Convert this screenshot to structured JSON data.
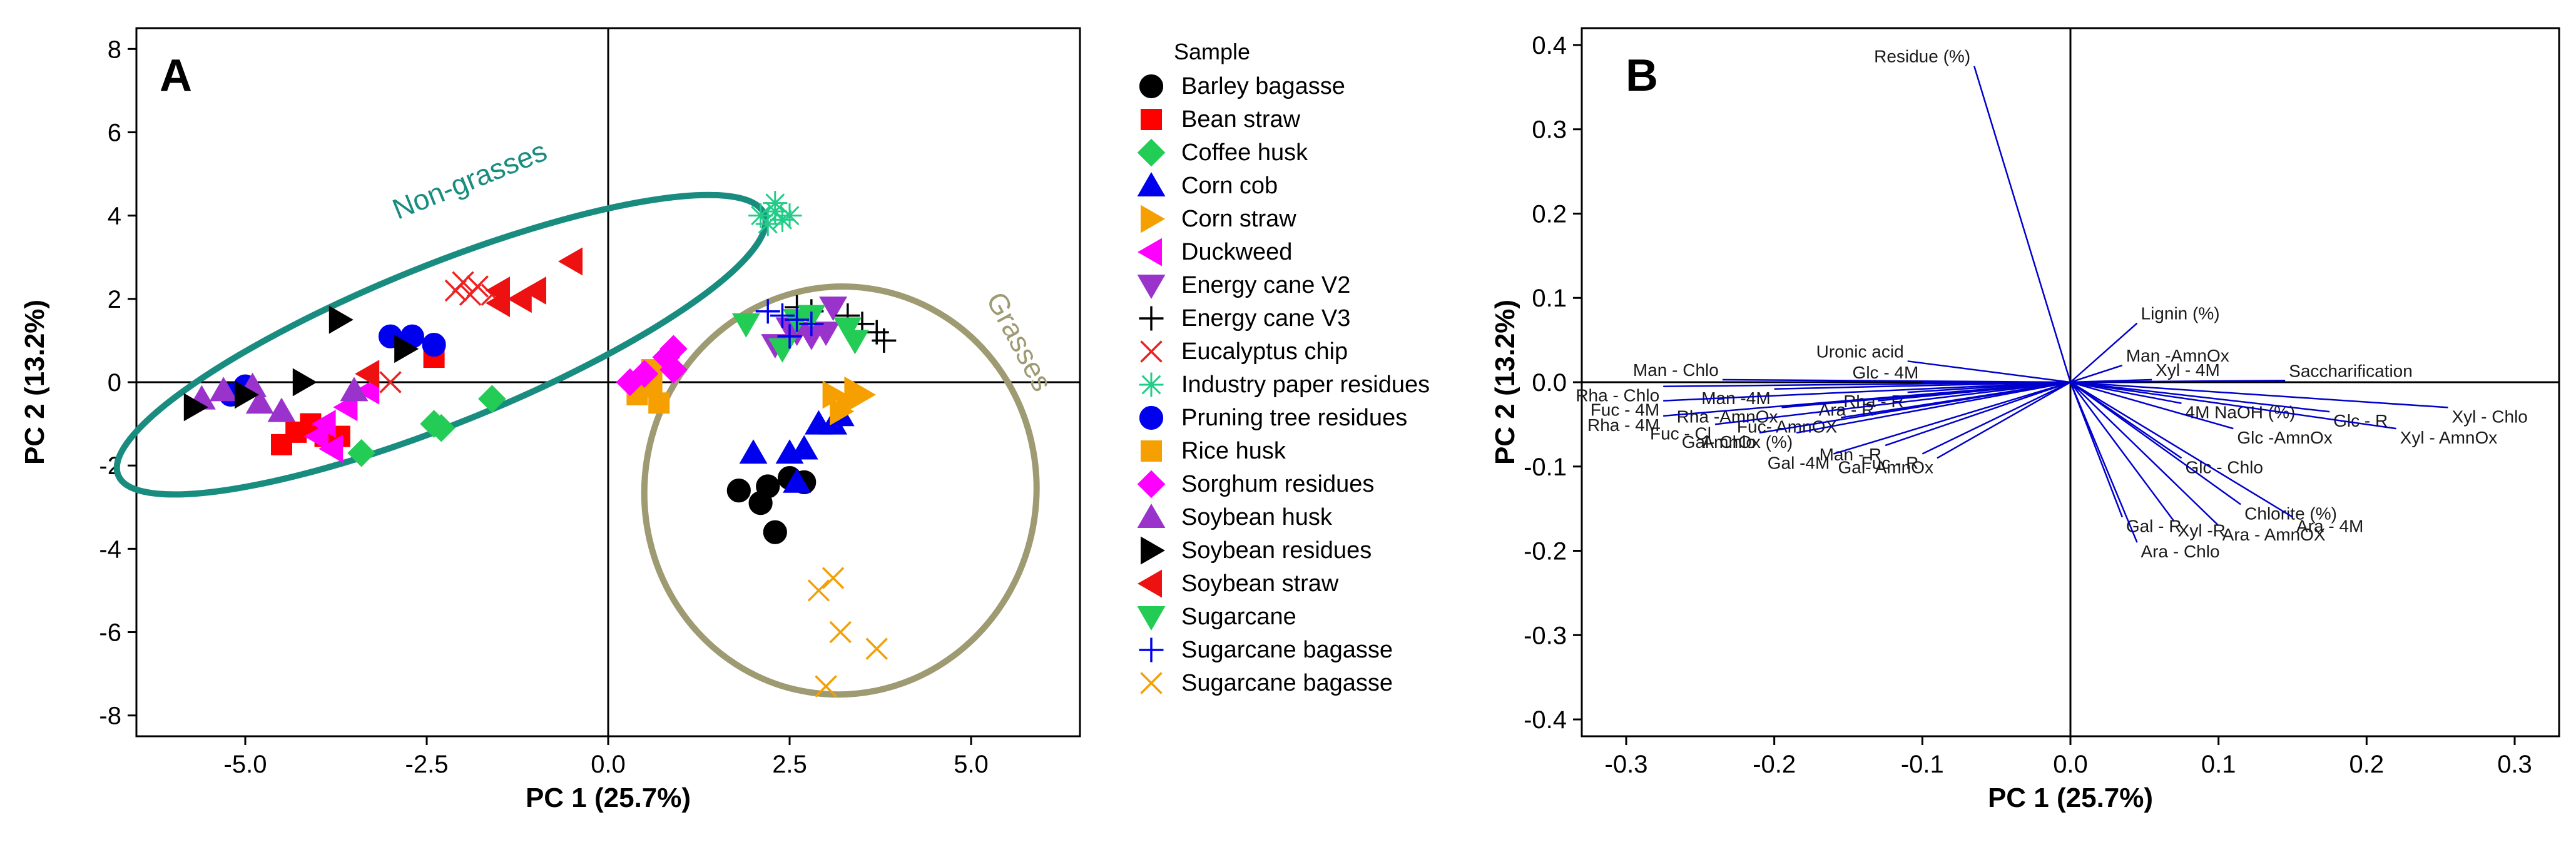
{
  "chart_data": [
    {
      "panel": "A",
      "type": "scatter",
      "xlabel": "PC 1 (25.7%)",
      "ylabel": "PC 2 (13.2%)",
      "xlim": [
        -6.5,
        6.5
      ],
      "ylim": [
        -8.5,
        8.5
      ],
      "xticks": [
        -5.0,
        -2.5,
        0.0,
        2.5,
        5.0
      ],
      "xtick_labels": [
        "-5.0",
        "-2.5",
        "0.0",
        "2.5",
        "5.0"
      ],
      "yticks": [
        8,
        6,
        4,
        2,
        0,
        -2,
        -4,
        -6,
        -8
      ],
      "ytick_labels": [
        "8",
        "6",
        "4",
        "2",
        "0",
        "-2",
        "-4",
        "-6",
        "-8"
      ],
      "legend_title": "Sample",
      "groups": [
        {
          "label": "Non-grasses",
          "color": "#198c80",
          "cx": -2.3,
          "cy": 0.9,
          "rx": 4.8,
          "ry": 1.9,
          "angle": 22
        },
        {
          "label": "Grasses",
          "color": "#9e9a72",
          "cx": 3.2,
          "cy": -2.6,
          "rx": 2.7,
          "ry": 4.9,
          "angle": -8
        }
      ],
      "series": [
        {
          "name": "Barley bagasse",
          "marker": "circle",
          "color": "#000000",
          "points": [
            [
              1.8,
              -2.6
            ],
            [
              2.1,
              -2.9
            ],
            [
              2.2,
              -2.5
            ],
            [
              2.3,
              -3.6
            ],
            [
              2.5,
              -2.3
            ],
            [
              2.7,
              -2.4
            ]
          ]
        },
        {
          "name": "Bean straw",
          "marker": "square",
          "color": "#ff0000",
          "points": [
            [
              -4.5,
              -1.5
            ],
            [
              -4.3,
              -1.2
            ],
            [
              -4.1,
              -1.0
            ],
            [
              -3.9,
              -1.3
            ],
            [
              -3.7,
              -1.3
            ],
            [
              -2.4,
              0.6
            ]
          ]
        },
        {
          "name": "Coffee husk",
          "marker": "diamond",
          "color": "#22cc55",
          "points": [
            [
              -3.4,
              -1.7
            ],
            [
              -2.4,
              -1.0
            ],
            [
              -2.3,
              -1.1
            ],
            [
              -1.6,
              -0.4
            ]
          ]
        },
        {
          "name": "Corn cob",
          "marker": "triangle-up",
          "color": "#0000ee",
          "points": [
            [
              2.0,
              -1.7
            ],
            [
              2.5,
              -1.7
            ],
            [
              2.6,
              -2.4
            ],
            [
              2.7,
              -1.6
            ],
            [
              2.9,
              -1.0
            ],
            [
              3.1,
              -1.0
            ],
            [
              3.2,
              -0.8
            ]
          ]
        },
        {
          "name": "Corn straw",
          "marker": "triangle-right",
          "color": "#f5a000",
          "points": [
            [
              3.1,
              -0.3
            ],
            [
              3.3,
              -0.5
            ],
            [
              3.5,
              -0.3
            ],
            [
              3.2,
              -0.7
            ],
            [
              3.4,
              -0.2
            ]
          ]
        },
        {
          "name": "Duckweed",
          "marker": "triangle-left",
          "color": "#ff00ff",
          "points": [
            [
              -4.0,
              -1.3
            ],
            [
              -3.8,
              -1.6
            ],
            [
              -3.9,
              -1.0
            ],
            [
              -3.6,
              -0.6
            ],
            [
              -3.3,
              -0.2
            ],
            [
              0.4,
              -0.1
            ]
          ]
        },
        {
          "name": "Energy cane V2",
          "marker": "triangle-down",
          "color": "#9933cc",
          "points": [
            [
              2.5,
              1.3
            ],
            [
              2.6,
              1.2
            ],
            [
              2.8,
              1.1
            ],
            [
              3.0,
              1.2
            ],
            [
              3.1,
              1.8
            ],
            [
              2.3,
              0.9
            ]
          ]
        },
        {
          "name": "Energy cane V3",
          "marker": "plus",
          "color": "#000000",
          "points": [
            [
              2.6,
              1.8
            ],
            [
              2.8,
              1.7
            ],
            [
              3.3,
              1.6
            ],
            [
              3.5,
              1.4
            ],
            [
              3.7,
              1.2
            ],
            [
              3.8,
              1.0
            ]
          ]
        },
        {
          "name": "Eucalyptus chip",
          "marker": "x",
          "color": "#ee2222",
          "points": [
            [
              -2.1,
              2.2
            ],
            [
              -2.0,
              2.4
            ],
            [
              -1.9,
              2.1
            ],
            [
              -1.8,
              2.3
            ],
            [
              -1.6,
              2.1
            ],
            [
              -3.0,
              0.0
            ]
          ]
        },
        {
          "name": "Industry paper residues",
          "marker": "star",
          "color": "#22cc88",
          "points": [
            [
              2.1,
              4.0
            ],
            [
              2.2,
              3.8
            ],
            [
              2.3,
              4.1
            ],
            [
              2.4,
              3.9
            ],
            [
              2.3,
              4.3
            ],
            [
              2.5,
              4.0
            ]
          ]
        },
        {
          "name": "Pruning tree residues",
          "marker": "circle",
          "color": "#0000ee",
          "points": [
            [
              -5.2,
              -0.3
            ],
            [
              -5.0,
              -0.1
            ],
            [
              -3.0,
              1.1
            ],
            [
              -2.7,
              1.1
            ],
            [
              -2.4,
              0.9
            ]
          ]
        },
        {
          "name": "Rice husk",
          "marker": "square",
          "color": "#f5a000",
          "points": [
            [
              0.4,
              -0.3
            ],
            [
              0.6,
              -0.1
            ],
            [
              0.5,
              0.0
            ],
            [
              0.6,
              0.3
            ],
            [
              0.7,
              -0.5
            ]
          ]
        },
        {
          "name": "Sorghum residues",
          "marker": "diamond",
          "color": "#ff00ff",
          "points": [
            [
              0.3,
              0.0
            ],
            [
              0.5,
              0.2
            ],
            [
              0.8,
              0.6
            ],
            [
              0.9,
              0.8
            ],
            [
              0.9,
              0.3
            ]
          ]
        },
        {
          "name": "Soybean husk",
          "marker": "triangle-up",
          "color": "#9933cc",
          "points": [
            [
              -5.6,
              -0.4
            ],
            [
              -5.3,
              -0.2
            ],
            [
              -4.9,
              -0.1
            ],
            [
              -4.8,
              -0.5
            ],
            [
              -4.5,
              -0.7
            ],
            [
              -3.5,
              -0.2
            ]
          ]
        },
        {
          "name": "Soybean residues",
          "marker": "triangle-right",
          "color": "#000000",
          "points": [
            [
              -5.7,
              -0.6
            ],
            [
              -5.0,
              -0.3
            ],
            [
              -4.2,
              0.0
            ],
            [
              -3.7,
              1.5
            ],
            [
              -2.8,
              0.8
            ]
          ]
        },
        {
          "name": "Soybean straw",
          "marker": "triangle-left",
          "color": "#ee1111",
          "points": [
            [
              -1.5,
              2.2
            ],
            [
              -1.5,
              1.9
            ],
            [
              -1.2,
              2.0
            ],
            [
              -1.0,
              2.2
            ],
            [
              -0.5,
              2.9
            ],
            [
              -3.3,
              0.2
            ]
          ]
        },
        {
          "name": "Sugarcane",
          "marker": "triangle-down",
          "color": "#22cc55",
          "points": [
            [
              1.9,
              1.4
            ],
            [
              2.6,
              1.5
            ],
            [
              2.8,
              1.6
            ],
            [
              3.3,
              1.3
            ],
            [
              3.4,
              1.0
            ],
            [
              2.4,
              0.8
            ]
          ]
        },
        {
          "name": "Sugarcane bagasse",
          "marker": "plus",
          "color": "#0000ee",
          "points": [
            [
              2.2,
              1.7
            ],
            [
              2.4,
              1.6
            ],
            [
              2.6,
              1.5
            ],
            [
              2.8,
              1.4
            ],
            [
              2.5,
              1.1
            ]
          ]
        },
        {
          "name": "Sugarcane bagasse",
          "marker": "x",
          "color": "#f5a000",
          "points": [
            [
              2.9,
              -5.0
            ],
            [
              3.1,
              -4.7
            ],
            [
              3.2,
              -6.0
            ],
            [
              3.0,
              -7.3
            ],
            [
              3.7,
              -6.4
            ]
          ]
        }
      ]
    },
    {
      "panel": "B",
      "type": "scatter",
      "subtype": "loading-vectors",
      "xlabel": "PC 1 (25.7%)",
      "ylabel": "PC 2 (13.2%)",
      "xlim": [
        -0.33,
        0.33
      ],
      "ylim": [
        -0.42,
        0.42
      ],
      "xticks": [
        -0.3,
        -0.2,
        -0.1,
        0.0,
        0.1,
        0.2,
        0.3
      ],
      "xtick_labels": [
        "-0.3",
        "-0.2",
        "-0.1",
        "0.0",
        "0.1",
        "0.2",
        "0.3"
      ],
      "yticks": [
        0.4,
        0.3,
        0.2,
        0.1,
        0.0,
        -0.1,
        -0.2,
        -0.3,
        -0.4
      ],
      "ytick_labels": [
        "0.4",
        "0.3",
        "0.2",
        "0.1",
        "0.0",
        "-0.1",
        "-0.2",
        "-0.3",
        "-0.4"
      ],
      "vectors": [
        {
          "label": "Residue (%)",
          "x": -0.065,
          "y": 0.375
        },
        {
          "label": "Lignin (%)",
          "x": 0.045,
          "y": 0.07
        },
        {
          "label": "Man -AmnOx",
          "x": 0.035,
          "y": 0.02
        },
        {
          "label": "Xyl - 4M",
          "x": 0.055,
          "y": 0.003
        },
        {
          "label": "Saccharification",
          "x": 0.145,
          "y": 0.002
        },
        {
          "label": "4M NaOH (%)",
          "x": 0.075,
          "y": -0.025
        },
        {
          "label": "Glc - R",
          "x": 0.175,
          "y": -0.035
        },
        {
          "label": "Xyl - Chlo",
          "x": 0.255,
          "y": -0.03
        },
        {
          "label": "Glc -AmnOx",
          "x": 0.11,
          "y": -0.055
        },
        {
          "label": "Xyl - AmnOx",
          "x": 0.22,
          "y": -0.055
        },
        {
          "label": "Glc - Chlo",
          "x": 0.075,
          "y": -0.09
        },
        {
          "label": "Chlorite (%)",
          "x": 0.115,
          "y": -0.145
        },
        {
          "label": "Ara - 4M",
          "x": 0.15,
          "y": -0.16
        },
        {
          "label": "Ara - AmnOX",
          "x": 0.1,
          "y": -0.17
        },
        {
          "label": "Xyl -R",
          "x": 0.07,
          "y": -0.165
        },
        {
          "label": "Gal - R",
          "x": 0.035,
          "y": -0.16
        },
        {
          "label": "Ara - Chlo",
          "x": 0.045,
          "y": -0.19
        },
        {
          "label": "Uronic acid",
          "x": -0.11,
          "y": 0.025
        },
        {
          "label": "Glc - 4M",
          "x": -0.1,
          "y": 0.0
        },
        {
          "label": "Man - Chlo",
          "x": -0.235,
          "y": 0.003
        },
        {
          "label": "Man -4M",
          "x": -0.2,
          "y": -0.008
        },
        {
          "label": "Rha - Chlo",
          "x": -0.275,
          "y": -0.005
        },
        {
          "label": "Rha - R",
          "x": -0.11,
          "y": -0.012
        },
        {
          "label": "Ara - R",
          "x": -0.13,
          "y": -0.022
        },
        {
          "label": "Fuc - 4M",
          "x": -0.275,
          "y": -0.022
        },
        {
          "label": "Rha -AmnOx",
          "x": -0.195,
          "y": -0.03
        },
        {
          "label": "Rha - 4M",
          "x": -0.275,
          "y": -0.04
        },
        {
          "label": "Fuc- AmnOX",
          "x": -0.155,
          "y": -0.042
        },
        {
          "label": "Fuc - Cl",
          "x": -0.24,
          "y": -0.05
        },
        {
          "label": "AmnOx (%)",
          "x": -0.185,
          "y": -0.06
        },
        {
          "label": "Gal- Chlo",
          "x": -0.21,
          "y": -0.06
        },
        {
          "label": "Fuc - R",
          "x": -0.1,
          "y": -0.085
        },
        {
          "label": "Man - R",
          "x": -0.125,
          "y": -0.075
        },
        {
          "label": "Gal- AmnOx",
          "x": -0.09,
          "y": -0.09
        },
        {
          "label": "Gal -4M",
          "x": -0.16,
          "y": -0.085
        }
      ]
    }
  ]
}
